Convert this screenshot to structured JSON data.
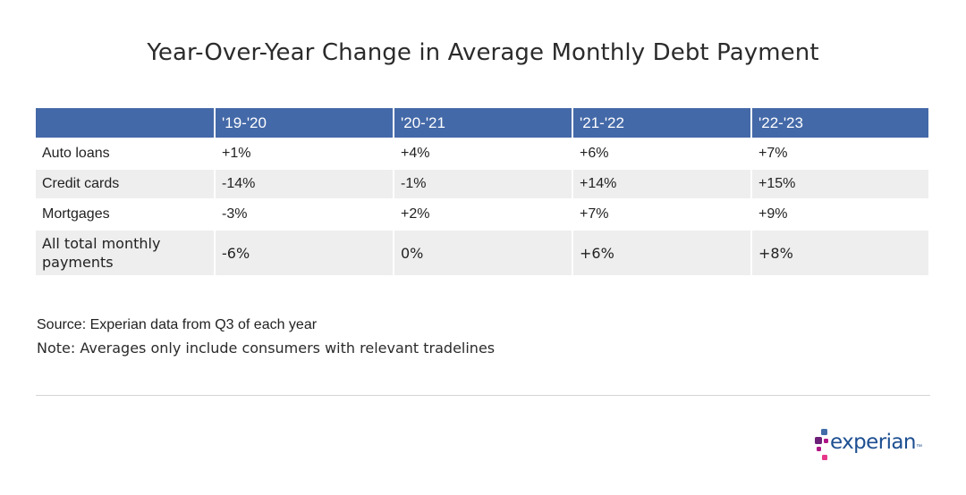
{
  "title": "Year-Over-Year Change in Average Monthly Debt Payment",
  "chart_data": {
    "type": "table",
    "title": "Year-Over-Year Change in Average Monthly Debt Payment",
    "columns": [
      "",
      "'19-'20",
      "'20-'21",
      "'21-'22",
      "'22-'23"
    ],
    "rows": [
      {
        "label": "Auto loans",
        "values": [
          "+1%",
          "+4%",
          "+6%",
          "+7%"
        ]
      },
      {
        "label": "Credit cards",
        "values": [
          "-14%",
          "-1%",
          "+14%",
          "+15%"
        ]
      },
      {
        "label": "Mortgages",
        "values": [
          "-3%",
          "+2%",
          "+7%",
          "+9%"
        ]
      },
      {
        "label": "All total monthly payments",
        "values": [
          "-6%",
          "0%",
          "+6%",
          "+8%"
        ]
      }
    ],
    "numeric_values": [
      [
        1,
        4,
        6,
        7
      ],
      [
        -14,
        -1,
        14,
        15
      ],
      [
        -3,
        2,
        7,
        9
      ],
      [
        -6,
        0,
        6,
        8
      ]
    ]
  },
  "source": "Source: Experian data from Q3 of each year",
  "note": "Note: Averages only include consumers with relevant tradelines",
  "logo": {
    "text": "experian",
    "tm": "™",
    "colors": {
      "word": "#1d4f91",
      "dot_purple": "#6d2077",
      "dot_magenta": "#af1685",
      "dot_blue": "#426da9",
      "dot_pink": "#e63888"
    }
  },
  "colors": {
    "header_bg": "#4469a8",
    "header_text": "#ffffff",
    "stripe": "#eeeeee"
  }
}
